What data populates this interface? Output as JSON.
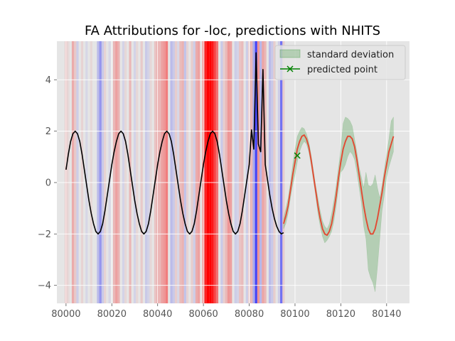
{
  "chart_data": {
    "type": "line",
    "title": "FA Attributions for -loc, predictions with NHITS",
    "xlabel": "",
    "ylabel": "",
    "xlim": [
      79996,
      80150
    ],
    "ylim": [
      -4.7,
      5.5
    ],
    "x_ticks": [
      80000,
      80020,
      80040,
      80060,
      80080,
      80100,
      80120,
      80140
    ],
    "y_ticks": [
      -4,
      -2,
      0,
      2,
      4
    ],
    "grid": true,
    "legend": {
      "placement": "top-right",
      "entries": [
        {
          "label": "standard deviation",
          "type": "patch",
          "color": "#9dc59d"
        },
        {
          "label": "predicted point",
          "type": "line-marker",
          "color": "#008000"
        }
      ]
    },
    "colors": {
      "axes_bg": "#e5e5e5",
      "history": "#000000",
      "forecast": "#e24a33",
      "band": "#228b22",
      "predicted_point": "#008000",
      "attr_pos": "#ff0000",
      "attr_neg": "#0000ff"
    },
    "attribution_bands": [
      {
        "x": 80000,
        "w": 1,
        "c": "r",
        "a": 0.15
      },
      {
        "x": 80001,
        "w": 1,
        "c": "r",
        "a": 0.05
      },
      {
        "x": 80003,
        "w": 1,
        "c": "r",
        "a": 0.25
      },
      {
        "x": 80004,
        "w": 1,
        "c": "r",
        "a": 0.12
      },
      {
        "x": 80005,
        "w": 1,
        "c": "b",
        "a": 0.1
      },
      {
        "x": 80007,
        "w": 1,
        "c": "r",
        "a": 0.08
      },
      {
        "x": 80009,
        "w": 1,
        "c": "b",
        "a": 0.06
      },
      {
        "x": 80011,
        "w": 1,
        "c": "r",
        "a": 0.06
      },
      {
        "x": 80014,
        "w": 1,
        "c": "b",
        "a": 0.18
      },
      {
        "x": 80015,
        "w": 1,
        "c": "b",
        "a": 0.35
      },
      {
        "x": 80016,
        "w": 1,
        "c": "b",
        "a": 0.12
      },
      {
        "x": 80017,
        "w": 1,
        "c": "r",
        "a": 0.08
      },
      {
        "x": 80019,
        "w": 1,
        "c": "b",
        "a": 0.06
      },
      {
        "x": 80021,
        "w": 1,
        "c": "r",
        "a": 0.2
      },
      {
        "x": 80022,
        "w": 1,
        "c": "r",
        "a": 0.3
      },
      {
        "x": 80023,
        "w": 1,
        "c": "r",
        "a": 0.22
      },
      {
        "x": 80025,
        "w": 1,
        "c": "b",
        "a": 0.08
      },
      {
        "x": 80026,
        "w": 1,
        "c": "r",
        "a": 0.06
      },
      {
        "x": 80028,
        "w": 1,
        "c": "r",
        "a": 0.2
      },
      {
        "x": 80030,
        "w": 1,
        "c": "b",
        "a": 0.08
      },
      {
        "x": 80031,
        "w": 1,
        "c": "r",
        "a": 0.06
      },
      {
        "x": 80033,
        "w": 1,
        "c": "r",
        "a": 0.12
      },
      {
        "x": 80035,
        "w": 1,
        "c": "b",
        "a": 0.12
      },
      {
        "x": 80036,
        "w": 1,
        "c": "b",
        "a": 0.08
      },
      {
        "x": 80037,
        "w": 1,
        "c": "r",
        "a": 0.06
      },
      {
        "x": 80039,
        "w": 1,
        "c": "r",
        "a": 0.15
      },
      {
        "x": 80040,
        "w": 1,
        "c": "r",
        "a": 0.25
      },
      {
        "x": 80041,
        "w": 1,
        "c": "r",
        "a": 0.2
      },
      {
        "x": 80042,
        "w": 1,
        "c": "r",
        "a": 0.3
      },
      {
        "x": 80043,
        "w": 1,
        "c": "r",
        "a": 0.35
      },
      {
        "x": 80044,
        "w": 1,
        "c": "r",
        "a": 0.45
      },
      {
        "x": 80046,
        "w": 1,
        "c": "b",
        "a": 0.18
      },
      {
        "x": 80047,
        "w": 1,
        "c": "b",
        "a": 0.12
      },
      {
        "x": 80048,
        "w": 1,
        "c": "r",
        "a": 0.1
      },
      {
        "x": 80049,
        "w": 1,
        "c": "b",
        "a": 0.06
      },
      {
        "x": 80050,
        "w": 1,
        "c": "r",
        "a": 0.18
      },
      {
        "x": 80051,
        "w": 1,
        "c": "r",
        "a": 0.22
      },
      {
        "x": 80052,
        "w": 1,
        "c": "b",
        "a": 0.15
      },
      {
        "x": 80053,
        "w": 1,
        "c": "r",
        "a": 0.08
      },
      {
        "x": 80055,
        "w": 1,
        "c": "r",
        "a": 0.1
      },
      {
        "x": 80056,
        "w": 1,
        "c": "b",
        "a": 0.1
      },
      {
        "x": 80057,
        "w": 1,
        "c": "r",
        "a": 0.25
      },
      {
        "x": 80058,
        "w": 1,
        "c": "r",
        "a": 0.3
      },
      {
        "x": 80060,
        "w": 1,
        "c": "r",
        "a": 0.45
      },
      {
        "x": 80061,
        "w": 1,
        "c": "r",
        "a": 0.85
      },
      {
        "x": 80062,
        "w": 1,
        "c": "r",
        "a": 1.0
      },
      {
        "x": 80063,
        "w": 1,
        "c": "r",
        "a": 1.0
      },
      {
        "x": 80064,
        "w": 1,
        "c": "r",
        "a": 0.9
      },
      {
        "x": 80065,
        "w": 1,
        "c": "r",
        "a": 0.7
      },
      {
        "x": 80066,
        "w": 1,
        "c": "r",
        "a": 0.5
      },
      {
        "x": 80068,
        "w": 1,
        "c": "b",
        "a": 0.12
      },
      {
        "x": 80069,
        "w": 1,
        "c": "r",
        "a": 0.1
      },
      {
        "x": 80070,
        "w": 1,
        "c": "r",
        "a": 0.2
      },
      {
        "x": 80071,
        "w": 1,
        "c": "r",
        "a": 0.35
      },
      {
        "x": 80072,
        "w": 1,
        "c": "r",
        "a": 0.3
      },
      {
        "x": 80074,
        "w": 1,
        "c": "b",
        "a": 0.1
      },
      {
        "x": 80075,
        "w": 1,
        "c": "b",
        "a": 0.08
      },
      {
        "x": 80076,
        "w": 1,
        "c": "r",
        "a": 0.15
      },
      {
        "x": 80077,
        "w": 1,
        "c": "r",
        "a": 0.18
      },
      {
        "x": 80079,
        "w": 1,
        "c": "b",
        "a": 0.1
      },
      {
        "x": 80080,
        "w": 1,
        "c": "r",
        "a": 0.12
      },
      {
        "x": 80081,
        "w": 1,
        "c": "r",
        "a": 0.2
      },
      {
        "x": 80082,
        "w": 1,
        "c": "b",
        "a": 0.25
      },
      {
        "x": 80083,
        "w": 1,
        "c": "b",
        "a": 0.7
      },
      {
        "x": 80084,
        "w": 1,
        "c": "r",
        "a": 0.35
      },
      {
        "x": 80085,
        "w": 1,
        "c": "b",
        "a": 0.2
      },
      {
        "x": 80086,
        "w": 1,
        "c": "r",
        "a": 0.28
      },
      {
        "x": 80087,
        "w": 1,
        "c": "r",
        "a": 0.2
      },
      {
        "x": 80089,
        "w": 1,
        "c": "b",
        "a": 0.18
      },
      {
        "x": 80090,
        "w": 1,
        "c": "b",
        "a": 0.12
      },
      {
        "x": 80091,
        "w": 1,
        "c": "r",
        "a": 0.1
      },
      {
        "x": 80093,
        "w": 1,
        "c": "b",
        "a": 0.1
      },
      {
        "x": 80094,
        "w": 1,
        "c": "b",
        "a": 0.5
      },
      {
        "x": 80095,
        "w": 1,
        "c": "r",
        "a": 0.1
      }
    ],
    "series": [
      {
        "role": "history",
        "x": [
          80000,
          80001,
          80002,
          80003,
          80004,
          80005,
          80006,
          80007,
          80008,
          80009,
          80010,
          80011,
          80012,
          80013,
          80014,
          80015,
          80016,
          80017,
          80018,
          80019,
          80020,
          80021,
          80022,
          80023,
          80024,
          80025,
          80026,
          80027,
          80028,
          80029,
          80030,
          80031,
          80032,
          80033,
          80034,
          80035,
          80036,
          80037,
          80038,
          80039,
          80040,
          80041,
          80042,
          80043,
          80044,
          80045,
          80046,
          80047,
          80048,
          80049,
          80050,
          80051,
          80052,
          80053,
          80054,
          80055,
          80056,
          80057,
          80058,
          80059,
          80060,
          80061,
          80062,
          80063,
          80064,
          80065,
          80066,
          80067,
          80068,
          80069,
          80070,
          80071,
          80072,
          80073,
          80074,
          80075,
          80076,
          80077,
          80078,
          80079,
          80080,
          80081,
          80082,
          80083,
          80084,
          80085,
          80086,
          80087,
          80088,
          80089,
          80090,
          80091,
          80092,
          80093,
          80094,
          80095
        ],
        "y": [
          0.5,
          1.1,
          1.6,
          1.9,
          2.0,
          1.9,
          1.6,
          1.1,
          0.5,
          -0.1,
          -0.7,
          -1.2,
          -1.6,
          -1.9,
          -2.0,
          -1.9,
          -1.6,
          -1.1,
          -0.5,
          0.1,
          0.7,
          1.2,
          1.6,
          1.9,
          2.0,
          1.9,
          1.6,
          1.1,
          0.5,
          -0.1,
          -0.7,
          -1.2,
          -1.6,
          -1.9,
          -2.0,
          -1.9,
          -1.6,
          -1.1,
          -0.5,
          0.1,
          0.7,
          1.2,
          1.6,
          1.9,
          2.0,
          1.9,
          1.6,
          1.1,
          0.5,
          -0.1,
          -0.7,
          -1.2,
          -1.6,
          -1.9,
          -2.0,
          -1.9,
          -1.6,
          -1.1,
          -0.5,
          0.1,
          0.7,
          1.2,
          1.6,
          1.9,
          2.0,
          1.9,
          1.6,
          1.1,
          0.5,
          -0.1,
          -0.7,
          -1.2,
          -1.6,
          -1.9,
          -2.0,
          -1.9,
          -1.6,
          -1.1,
          -0.5,
          0.1,
          0.7,
          2.05,
          1.3,
          5.05,
          1.5,
          1.2,
          4.4,
          0.7,
          0.1,
          -0.5,
          -1.0,
          -1.4,
          -1.7,
          -1.9,
          -2.0,
          -1.95
        ]
      },
      {
        "role": "forecast",
        "x": [
          80095,
          80096,
          80097,
          80098,
          80099,
          80100,
          80101,
          80102,
          80103,
          80104,
          80105,
          80106,
          80107,
          80108,
          80109,
          80110,
          80111,
          80112,
          80113,
          80114,
          80115,
          80116,
          80117,
          80118,
          80119,
          80120,
          80121,
          80122,
          80123,
          80124,
          80125,
          80126,
          80127,
          80128,
          80129,
          80130,
          80131,
          80132,
          80133,
          80134,
          80135,
          80136,
          80137,
          80138,
          80139,
          80140,
          80141,
          80142,
          80143
        ],
        "y": [
          -1.6,
          -1.3,
          -0.9,
          -0.3,
          0.3,
          0.8,
          1.3,
          1.6,
          1.8,
          1.85,
          1.7,
          1.4,
          0.9,
          0.3,
          -0.3,
          -0.9,
          -1.4,
          -1.8,
          -2.0,
          -2.05,
          -1.9,
          -1.6,
          -1.1,
          -0.5,
          0.2,
          0.8,
          1.3,
          1.6,
          1.8,
          1.8,
          1.7,
          1.4,
          0.9,
          0.3,
          -0.3,
          -0.9,
          -1.4,
          -1.8,
          -2.0,
          -2.0,
          -1.8,
          -1.4,
          -0.9,
          -0.4,
          0.2,
          0.7,
          1.2,
          1.5,
          1.8
        ]
      },
      {
        "role": "std_band",
        "name": "standard deviation",
        "x": [
          80095,
          80096,
          80097,
          80098,
          80099,
          80100,
          80101,
          80102,
          80103,
          80104,
          80105,
          80106,
          80107,
          80108,
          80109,
          80110,
          80111,
          80112,
          80113,
          80114,
          80115,
          80116,
          80117,
          80118,
          80119,
          80120,
          80121,
          80122,
          80123,
          80124,
          80125,
          80126,
          80127,
          80128,
          80129,
          80130,
          80131,
          80132,
          80133,
          80134,
          80135,
          80136,
          80137,
          80138,
          80139,
          80140,
          80141,
          80142,
          80143
        ],
        "upper": [
          -1.4,
          -1.0,
          -0.6,
          0.0,
          0.7,
          1.3,
          1.8,
          2.0,
          2.15,
          2.1,
          1.9,
          1.6,
          1.1,
          0.5,
          -0.1,
          -0.6,
          -1.1,
          -1.5,
          -1.7,
          -1.8,
          -1.6,
          -1.2,
          -0.7,
          -0.1,
          0.6,
          1.3,
          2.3,
          2.55,
          2.5,
          2.4,
          2.2,
          1.7,
          1.2,
          0.6,
          0.2,
          -0.2,
          0.4,
          -0.1,
          -0.15,
          -0.05,
          0.3,
          -0.2,
          -0.6,
          -0.1,
          0.5,
          1.1,
          1.7,
          2.4,
          2.55
        ],
        "lower": [
          -1.8,
          -1.6,
          -1.2,
          -0.6,
          -0.1,
          0.3,
          0.8,
          1.2,
          1.45,
          1.6,
          1.5,
          1.2,
          0.7,
          0.1,
          -0.5,
          -1.2,
          -1.7,
          -2.1,
          -2.35,
          -2.25,
          -2.1,
          -1.9,
          -1.5,
          -0.9,
          -0.2,
          0.4,
          0.5,
          0.7,
          1.0,
          1.2,
          1.1,
          0.9,
          0.4,
          -0.2,
          -0.8,
          -1.7,
          -2.2,
          -3.4,
          -3.7,
          -3.9,
          -4.25,
          -3.3,
          -2.2,
          -1.1,
          -0.5,
          0.2,
          0.6,
          0.9,
          1.2
        ]
      },
      {
        "role": "predicted_point",
        "name": "predicted point",
        "x": [
          80101
        ],
        "y": [
          1.05
        ]
      }
    ]
  }
}
